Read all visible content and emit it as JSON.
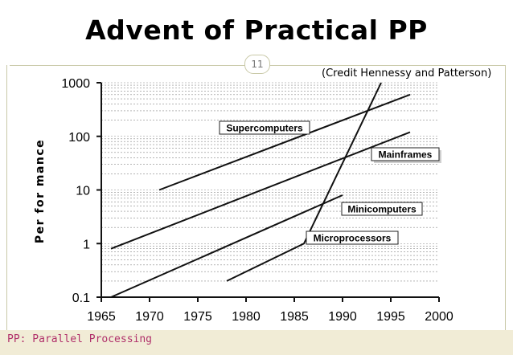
{
  "slide": {
    "title": "Advent of Practical PP",
    "page_number": "11",
    "credit": "(Credit Hennessy and Patterson)",
    "footer": "PP: Parallel Processing"
  },
  "colors": {
    "line": "#111111",
    "label_box_border": "#222222",
    "footer_text": "#b0306a",
    "footer_bg": "#f1ecd6"
  },
  "chart_data": {
    "type": "line",
    "title": "",
    "xlabel": "",
    "ylabel": "Per for mance",
    "xlim": [
      1965,
      2000
    ],
    "ylim": [
      0.1,
      1000
    ],
    "yscale": "log",
    "x_ticks": [
      1965,
      1970,
      1975,
      1980,
      1985,
      1990,
      1995,
      2000
    ],
    "x_tick_labels": [
      "1965",
      "1970",
      "1975",
      "1980",
      "1985",
      "1990",
      "1995",
      "2000"
    ],
    "y_ticks": [
      0.1,
      1,
      10,
      100,
      1000
    ],
    "y_tick_labels": [
      "0.1",
      "1",
      "10",
      "100",
      "1000"
    ],
    "grid": "horizontal dashed",
    "series": [
      {
        "name": "Supercomputers",
        "x": [
          1971,
          1997
        ],
        "y": [
          10,
          600
        ]
      },
      {
        "name": "Mainframes",
        "x": [
          1966,
          1997
        ],
        "y": [
          0.8,
          120
        ]
      },
      {
        "name": "Minicomputers",
        "x": [
          1966,
          1990
        ],
        "y": [
          0.1,
          8
        ]
      },
      {
        "name": "Microprocessors",
        "x": [
          1978,
          1986,
          1994
        ],
        "y": [
          0.2,
          1,
          1000
        ]
      }
    ]
  }
}
